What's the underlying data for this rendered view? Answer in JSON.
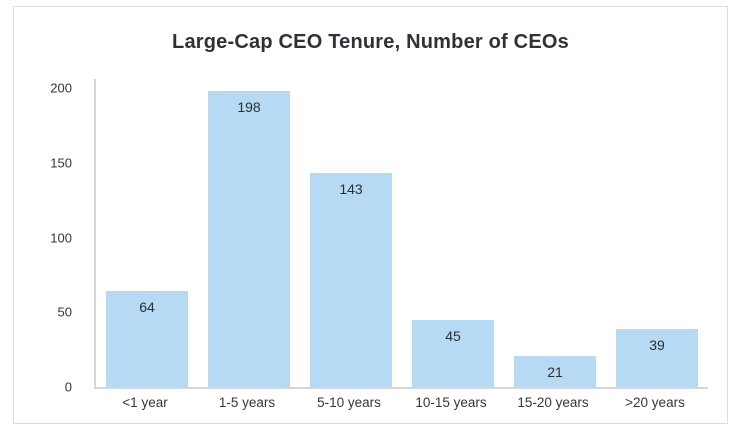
{
  "chart_data": {
    "type": "bar",
    "title": "Large-Cap CEO Tenure, Number of CEOs",
    "categories": [
      "<1 year",
      "1-5 years",
      "5-10 years",
      "10-15 years",
      "15-20 years",
      ">20 years"
    ],
    "values": [
      64,
      198,
      143,
      45,
      21,
      39
    ],
    "data_labels": [
      "64",
      "198",
      "143",
      "45",
      "21",
      "39"
    ],
    "xlabel": "",
    "ylabel": "",
    "ylim": [
      0,
      200
    ],
    "yticks": [
      0,
      50,
      100,
      150,
      200
    ],
    "grid": false,
    "legend": false
  },
  "colors": {
    "bar_fill": "#b6daf3",
    "axis_line": "#d6d6d8",
    "tick_text": "#33363b",
    "data_label_text": "#2b2e33",
    "title_text": "#2e3138",
    "card_border": "#dddde1",
    "background": "#ffffff"
  }
}
